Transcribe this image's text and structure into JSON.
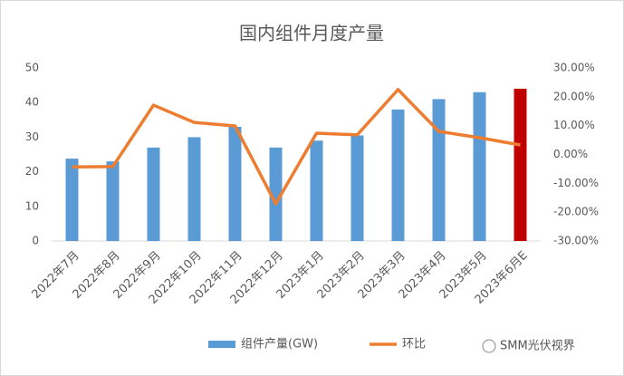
{
  "chart_data": {
    "type": "combo",
    "title": "国内组件月度产量",
    "categories": [
      "2022年7月",
      "2022年8月",
      "2022年9月",
      "2022年10月",
      "2022年11月",
      "2022年12月",
      "2023年1月",
      "2023年2月",
      "2023年3月",
      "2023年4月",
      "2023年5月",
      "2023年6月E"
    ],
    "series": [
      {
        "name": "组件产量(GW)",
        "type": "bar",
        "color": "#5b9bd5",
        "point_colors": [
          "#5b9bd5",
          "#5b9bd5",
          "#5b9bd5",
          "#5b9bd5",
          "#5b9bd5",
          "#5b9bd5",
          "#5b9bd5",
          "#5b9bd5",
          "#5b9bd5",
          "#5b9bd5",
          "#5b9bd5",
          "#c00000"
        ],
        "values": [
          23.8,
          23,
          27,
          30,
          33,
          27,
          29,
          30.5,
          38,
          41,
          43,
          44
        ]
      },
      {
        "name": "环比",
        "type": "line",
        "axis": "y2",
        "color": "#ed7d31",
        "values": [
          -4.3,
          -4.2,
          17.1,
          11.1,
          9.9,
          -17.1,
          7.4,
          6.8,
          22.5,
          8,
          5.8,
          3.3
        ]
      }
    ],
    "ylim": [
      0,
      50
    ],
    "yticks": [
      0,
      10,
      20,
      30,
      40,
      50
    ],
    "y2lim": [
      -30,
      30
    ],
    "y2ticks": [
      {
        "value": 30,
        "label": "30.00%"
      },
      {
        "value": 20,
        "label": "20.00%"
      },
      {
        "value": 10,
        "label": "10.00%"
      },
      {
        "value": 0,
        "label": "0.00%"
      },
      {
        "value": -10,
        "label": "-10.00%"
      },
      {
        "value": -20,
        "label": "-20.00%"
      },
      {
        "value": -30,
        "label": "-30.00%"
      }
    ],
    "grid": false,
    "legend": "bottom",
    "source": "SMM光伏视界"
  }
}
